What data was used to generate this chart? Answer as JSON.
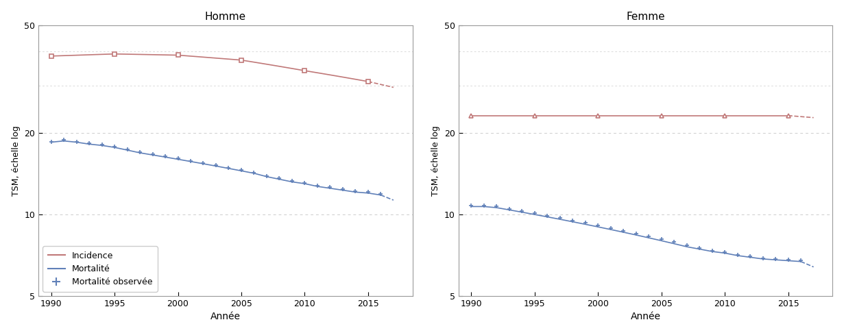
{
  "homme": {
    "title": "Homme",
    "incidence_years": [
      1990,
      1995,
      2000,
      2005,
      2010,
      2015
    ],
    "incidence_values": [
      38.5,
      39.2,
      38.8,
      37.2,
      34.0,
      31.0
    ],
    "incidence_proj": [
      2015,
      2017
    ],
    "incidence_proj_values": [
      31.0,
      29.5
    ],
    "mortality_years_solid": [
      1990,
      1991,
      1992,
      1993,
      1994,
      1995,
      1996,
      1997,
      1998,
      1999,
      2000,
      2001,
      2002,
      2003,
      2004,
      2005,
      2006,
      2007,
      2008,
      2009,
      2010,
      2011,
      2012,
      2013,
      2014,
      2015,
      2016
    ],
    "mortality_values_solid": [
      18.5,
      18.7,
      18.5,
      18.2,
      18.0,
      17.7,
      17.3,
      16.9,
      16.6,
      16.3,
      16.0,
      15.7,
      15.4,
      15.1,
      14.8,
      14.5,
      14.2,
      13.8,
      13.5,
      13.2,
      13.0,
      12.7,
      12.5,
      12.3,
      12.1,
      12.0,
      11.8
    ],
    "mortality_proj": [
      2016,
      2017
    ],
    "mortality_proj_values": [
      11.8,
      11.3
    ],
    "obs_years": [
      1990,
      1991,
      1992,
      1993,
      1994,
      1995,
      1996,
      1997,
      1998,
      1999,
      2000,
      2001,
      2002,
      2003,
      2004,
      2005,
      2006,
      2007,
      2008,
      2009,
      2010,
      2011,
      2012,
      2013,
      2014,
      2015,
      2016
    ],
    "obs_values": [
      18.6,
      18.9,
      18.6,
      18.3,
      18.1,
      17.8,
      17.4,
      17.0,
      16.7,
      16.4,
      16.1,
      15.8,
      15.5,
      15.2,
      14.9,
      14.6,
      14.3,
      13.9,
      13.6,
      13.3,
      13.1,
      12.8,
      12.6,
      12.4,
      12.2,
      12.1,
      11.9
    ]
  },
  "femme": {
    "title": "Femme",
    "incidence_years": [
      1990,
      1995,
      2000,
      2005,
      2010,
      2015
    ],
    "incidence_values": [
      23.2,
      23.2,
      23.2,
      23.2,
      23.2,
      23.2
    ],
    "incidence_proj": [
      2015,
      2017
    ],
    "incidence_proj_values": [
      23.2,
      22.8
    ],
    "mortality_years_solid": [
      1990,
      1991,
      1992,
      1993,
      1994,
      1995,
      1996,
      1997,
      1998,
      1999,
      2000,
      2001,
      2002,
      2003,
      2004,
      2005,
      2006,
      2007,
      2008,
      2009,
      2010,
      2011,
      2012,
      2013,
      2014,
      2015,
      2016
    ],
    "mortality_values_solid": [
      10.7,
      10.7,
      10.6,
      10.4,
      10.2,
      10.0,
      9.8,
      9.6,
      9.4,
      9.2,
      9.0,
      8.8,
      8.6,
      8.4,
      8.2,
      8.0,
      7.8,
      7.6,
      7.45,
      7.3,
      7.2,
      7.05,
      6.95,
      6.85,
      6.8,
      6.75,
      6.7
    ],
    "mortality_proj": [
      2016,
      2017
    ],
    "mortality_proj_values": [
      6.7,
      6.4
    ],
    "obs_years": [
      1990,
      1991,
      1992,
      1993,
      1994,
      1995,
      1996,
      1997,
      1998,
      1999,
      2000,
      2001,
      2002,
      2003,
      2004,
      2005,
      2006,
      2007,
      2008,
      2009,
      2010,
      2011,
      2012,
      2013,
      2014,
      2015,
      2016
    ],
    "obs_values": [
      10.8,
      10.8,
      10.7,
      10.5,
      10.3,
      10.1,
      9.9,
      9.7,
      9.5,
      9.3,
      9.1,
      8.9,
      8.7,
      8.5,
      8.3,
      8.1,
      7.9,
      7.7,
      7.5,
      7.35,
      7.25,
      7.1,
      7.0,
      6.9,
      6.85,
      6.8,
      6.75
    ]
  },
  "incidence_color": "#c07878",
  "mortality_color": "#6080b8",
  "ylabel": "TSM, échelle log",
  "xlabel": "Année",
  "ylim": [
    5,
    50
  ],
  "yticks": [
    5,
    10,
    20,
    50
  ],
  "ytick_labels": [
    "5",
    "10",
    "20",
    "50"
  ],
  "xticks": [
    1990,
    1995,
    2000,
    2005,
    2010,
    2015
  ],
  "xlim": [
    1989.0,
    2018.5
  ],
  "legend_labels": [
    "Incidence",
    "Mortalité",
    "Mortalité observée"
  ],
  "background_color": "#ffffff",
  "grid_color": "#cccccc"
}
